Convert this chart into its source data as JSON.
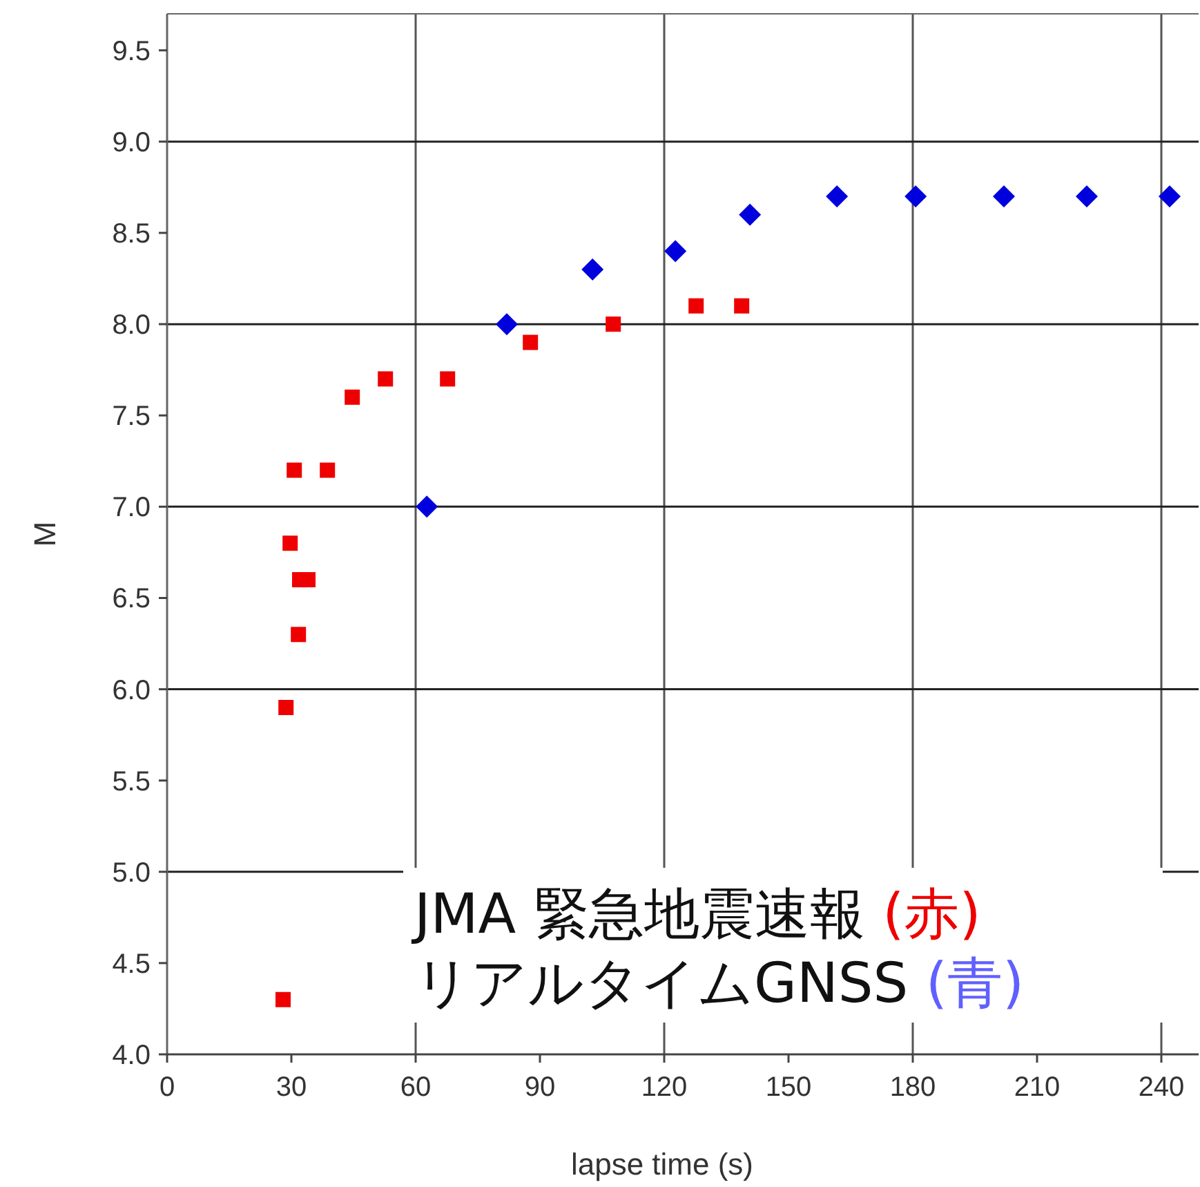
{
  "chart_data": {
    "type": "scatter",
    "xlabel": "lapse time (s)",
    "ylabel": "M",
    "annotations": [
      "JMA 緊急地震速報 (赤)",
      "リアルタイムGNSS (青)"
    ],
    "xlim": [
      0,
      249
    ],
    "ylim": [
      4.0,
      9.7
    ],
    "xticks": [
      0,
      30,
      60,
      90,
      120,
      150,
      180,
      210,
      240
    ],
    "yticks": [
      {
        "value": 4,
        "label": "4.0"
      },
      4.5,
      {
        "value": 5,
        "label": "5.0"
      },
      5.5,
      {
        "value": 6,
        "label": "6.0"
      },
      6.5,
      {
        "value": 7,
        "label": "7.0"
      },
      7.5,
      {
        "value": 8,
        "label": "8.0"
      },
      8.5,
      {
        "value": 9,
        "label": "9.0"
      },
      9.5
    ],
    "grid": true,
    "series": [
      {
        "color": "#ee0000",
        "marker": "square",
        "x": [
          28,
          28.7,
          29.7,
          30.7,
          31.7,
          32,
          34,
          38.7,
          44.7,
          52.7,
          67.7,
          87.7,
          107.7,
          127.7,
          138.7
        ],
        "values": [
          4.3,
          5.9,
          6.8,
          7.2,
          6.3,
          6.6,
          6.6,
          7.2,
          7.6,
          7.7,
          7.7,
          7.9,
          8.0,
          8.1,
          8.1
        ]
      },
      {
        "color": "#0000dd",
        "marker": "diamond",
        "x": [
          62.7,
          82,
          102.7,
          122.7,
          140.7,
          161.7,
          180.7,
          202,
          222,
          242
        ],
        "values": [
          7.0,
          8.0,
          8.3,
          8.4,
          8.6,
          8.7,
          8.7,
          8.7,
          8.7,
          8.7
        ]
      }
    ]
  }
}
